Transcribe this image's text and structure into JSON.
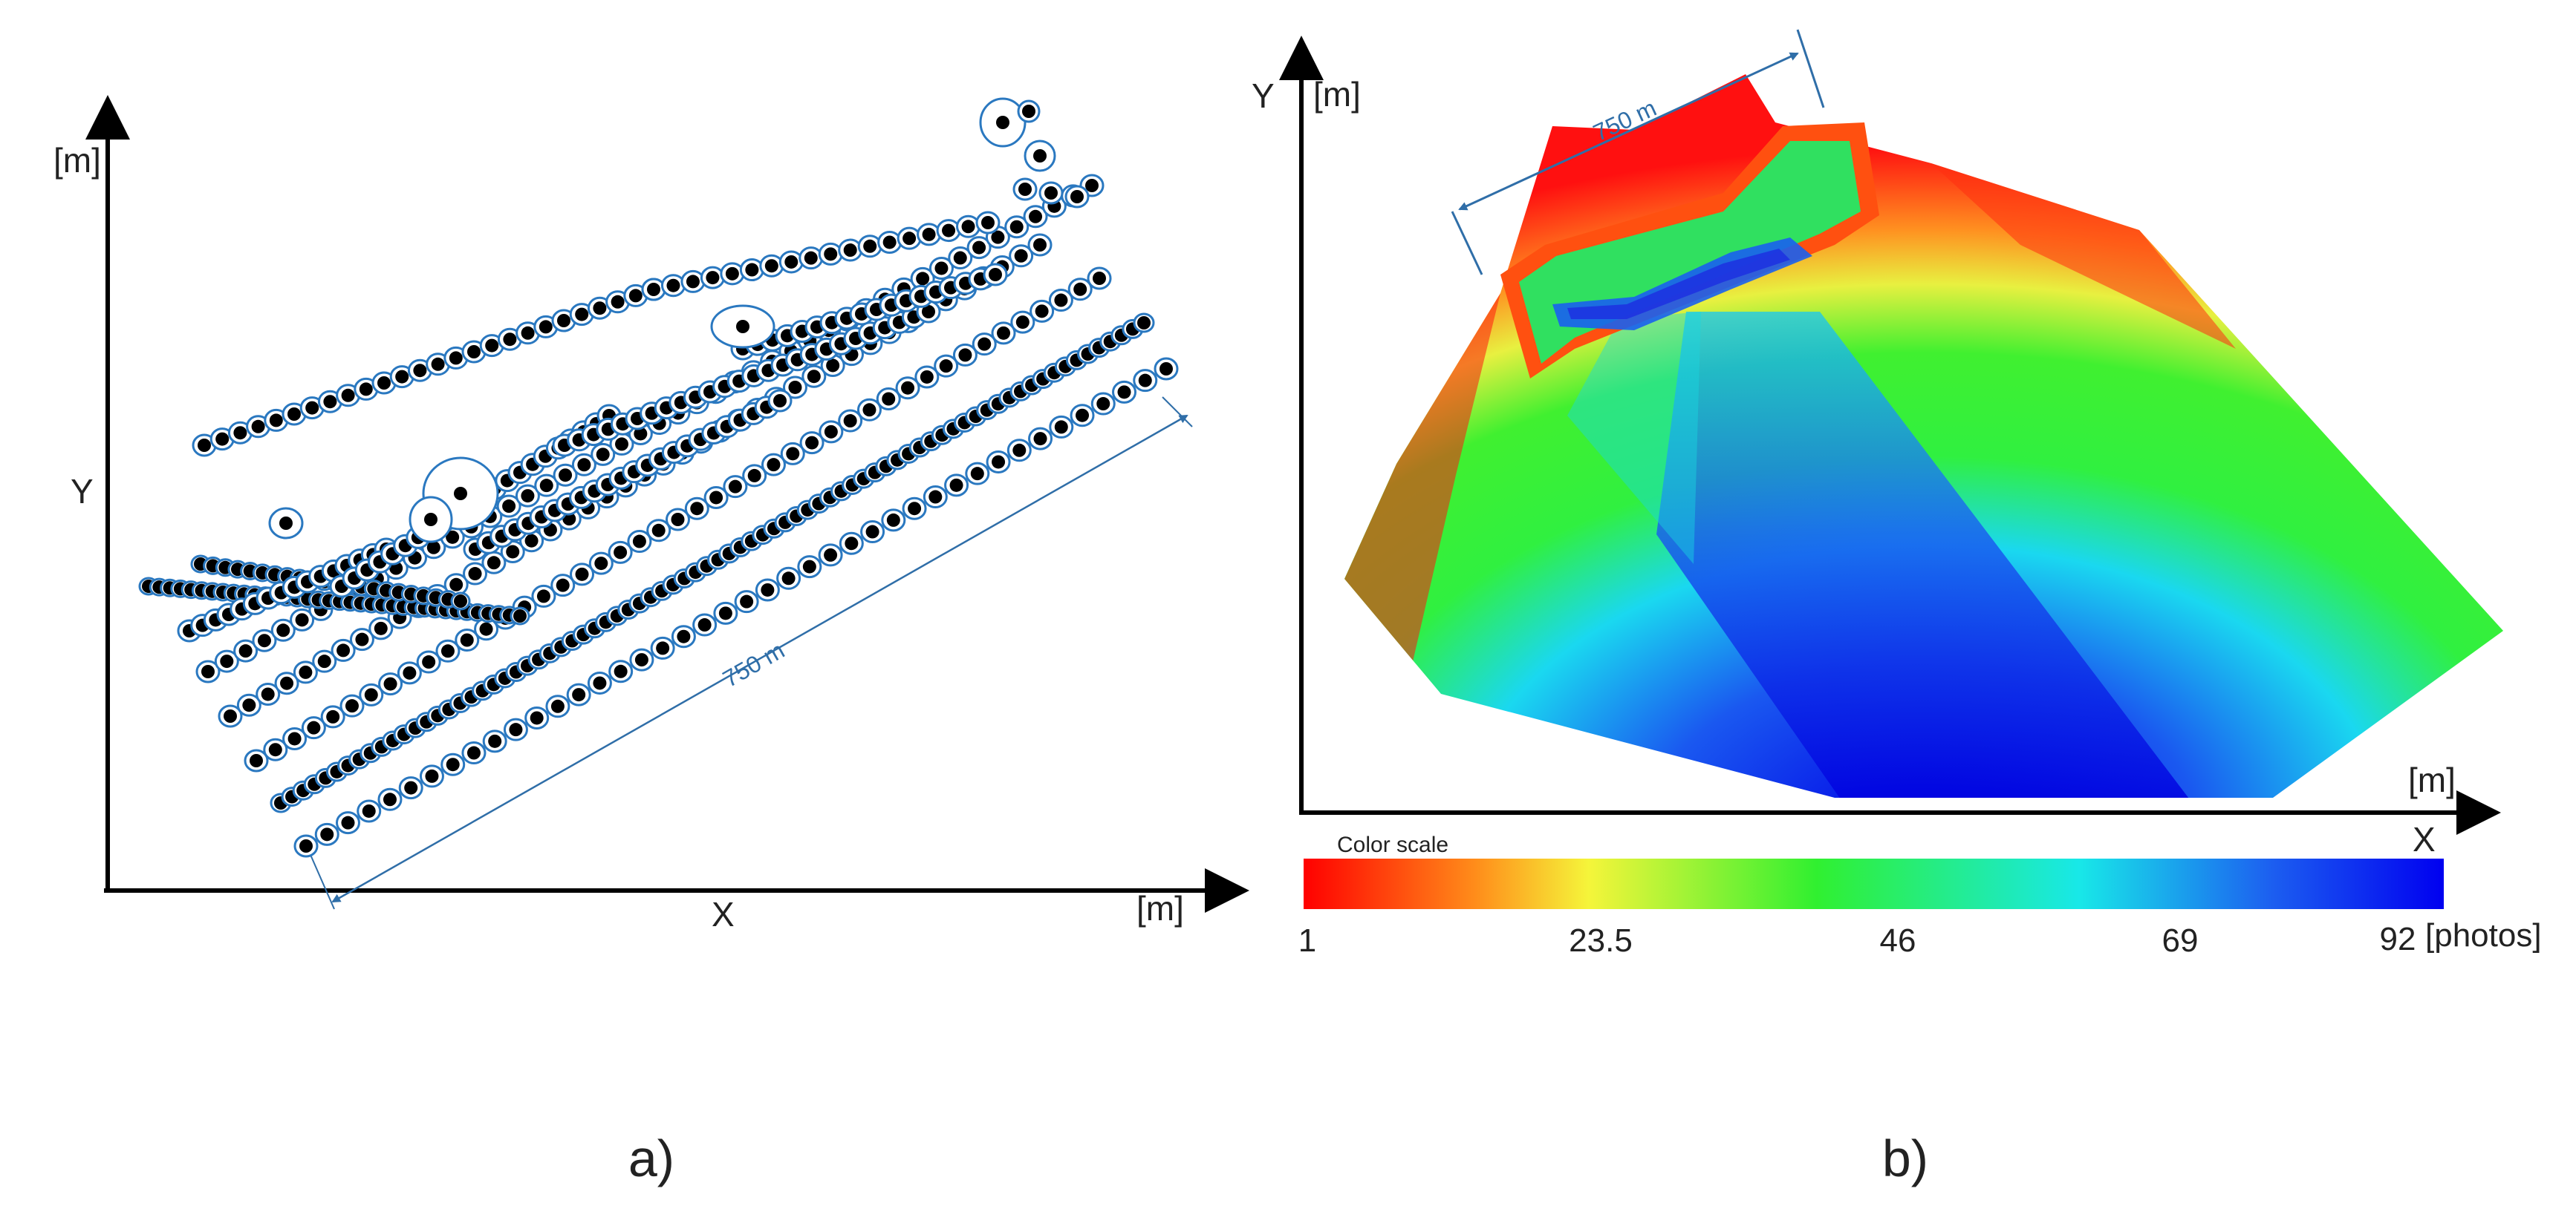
{
  "panel_a": {
    "caption": "a)",
    "x_axis_label": "X",
    "x_unit": "[m]",
    "y_axis_label": "Y",
    "y_unit": "[m]",
    "dimension_label": "750 m",
    "colors": {
      "ellipse": "#2a78c0",
      "point": "#000000",
      "dimension": "#2f6ea8"
    },
    "flight_strips": 7
  },
  "panel_b": {
    "caption": "b)",
    "x_axis_label": "X",
    "x_unit": "[m]",
    "y_axis_label": "Y",
    "y_unit": "[m]",
    "dimension_label": "750 m",
    "color_scale": {
      "title": "Color scale",
      "ticks": [
        "1",
        "23.5",
        "46",
        "69",
        "92"
      ],
      "unit": "[photos]",
      "min": 1,
      "max": 92,
      "colors": [
        "#ff0000",
        "#ff8c1a",
        "#f5f53a",
        "#30f030",
        "#18e8e8",
        "#1c5ef0",
        "#0000f0"
      ]
    }
  }
}
